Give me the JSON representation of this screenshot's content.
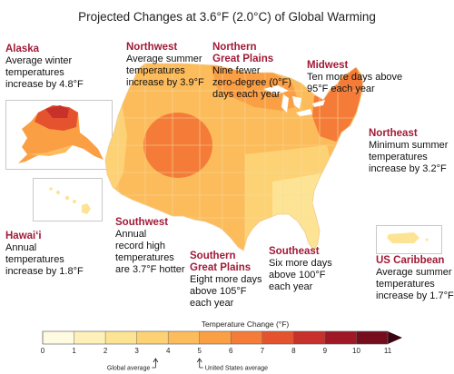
{
  "title": "Projected Changes at 3.6°F (2.0°C) of Global Warming",
  "regions": {
    "alaska": {
      "name": "Alaska",
      "desc": "Average winter\ntemperatures\nincrease by 4.8°F"
    },
    "northwest": {
      "name": "Northwest",
      "desc": "Average summer\ntemperatures\nincrease by 3.9°F"
    },
    "northern_great_plains": {
      "name": "Northern\nGreat Plains",
      "desc": "Nine fewer\nzero-degree (0°F)\ndays each year"
    },
    "midwest": {
      "name": "Midwest",
      "desc": "Ten more days above\n95°F each year"
    },
    "northeast": {
      "name": "Northeast",
      "desc": "Minimum summer\ntemperatures\nincrease by 3.2°F"
    },
    "hawaii": {
      "name": "Hawai‘i",
      "desc": "Annual\ntemperatures\nincrease by 1.8°F"
    },
    "southwest": {
      "name": "Southwest",
      "desc": "Annual\nrecord high\ntemperatures\nare 3.7°F hotter"
    },
    "southern_great_plains": {
      "name": "Southern\nGreat Plains",
      "desc": "Eight more days\nabove 105°F\neach year"
    },
    "southeast": {
      "name": "Southeast",
      "desc": "Six more days\nabove 100°F\neach year"
    },
    "us_caribbean": {
      "name": "US Caribbean",
      "desc": "Average summer\ntemperatures\nincrease by 1.7°F"
    }
  },
  "legend": {
    "title": "Temperature Change (°F)",
    "ticks": [
      "0",
      "1",
      "2",
      "3",
      "4",
      "5",
      "6",
      "7",
      "8",
      "9",
      "10",
      "11"
    ],
    "colors": [
      "#fffbe0",
      "#fdf0b8",
      "#fde494",
      "#fdd274",
      "#fcbc5b",
      "#fb9f45",
      "#f47c38",
      "#e4532e",
      "#c8302b",
      "#a01825",
      "#760d1d"
    ],
    "global_average_label": "Global average",
    "us_average_label": "United States average",
    "global_average_value": 3.6,
    "us_average_value": 5
  },
  "colors": {
    "region_name": "#a01a37",
    "state_border": "#f6d9a0"
  }
}
